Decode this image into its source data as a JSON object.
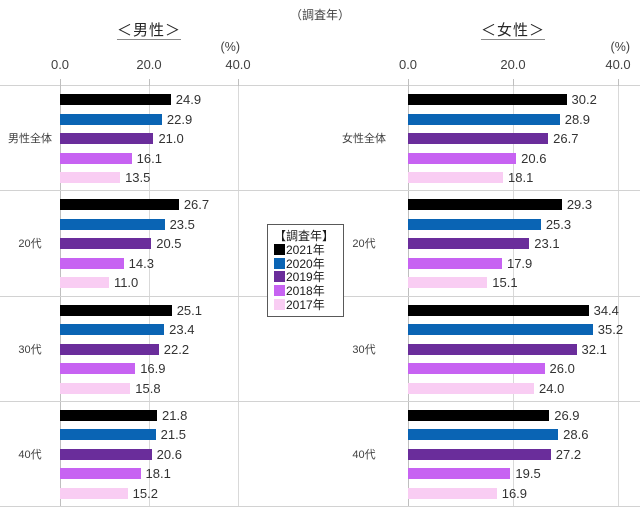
{
  "header": {
    "survey_year_note": "（調査年）"
  },
  "legend": {
    "title": "【調査年】",
    "items": [
      {
        "label": "2021年",
        "color": "#000000"
      },
      {
        "label": "2020年",
        "color": "#0a64b4"
      },
      {
        "label": "2019年",
        "color": "#6a2d9b"
      },
      {
        "label": "2018年",
        "color": "#c763f2"
      },
      {
        "label": "2017年",
        "color": "#f9cdf3"
      }
    ]
  },
  "chart_data": [
    {
      "type": "bar",
      "orientation": "horizontal",
      "title": "＜男性＞",
      "percent_label": "(%)",
      "axis_ticks": [
        "0.0",
        "20.0",
        "40.0"
      ],
      "xlim": [
        0,
        40
      ],
      "grid": true,
      "categories": [
        "男性全体",
        "20代",
        "30代",
        "40代"
      ],
      "series": [
        {
          "name": "2021年",
          "color": "#000000",
          "values": [
            24.9,
            26.7,
            25.1,
            21.8
          ]
        },
        {
          "name": "2020年",
          "color": "#0a64b4",
          "values": [
            22.9,
            23.5,
            23.4,
            21.5
          ]
        },
        {
          "name": "2019年",
          "color": "#6a2d9b",
          "values": [
            21.0,
            20.5,
            22.2,
            20.6
          ]
        },
        {
          "name": "2018年",
          "color": "#c763f2",
          "values": [
            16.1,
            14.3,
            16.9,
            18.1
          ]
        },
        {
          "name": "2017年",
          "color": "#f9cdf3",
          "values": [
            13.5,
            11.0,
            15.8,
            15.2
          ]
        }
      ]
    },
    {
      "type": "bar",
      "orientation": "horizontal",
      "title": "＜女性＞",
      "percent_label": "(%)",
      "axis_ticks": [
        "0.0",
        "20.0",
        "40.0"
      ],
      "xlim": [
        0,
        40
      ],
      "grid": true,
      "categories": [
        "女性全体",
        "20代",
        "30代",
        "40代"
      ],
      "series": [
        {
          "name": "2021年",
          "color": "#000000",
          "values": [
            30.2,
            29.3,
            34.4,
            26.9
          ]
        },
        {
          "name": "2020年",
          "color": "#0a64b4",
          "values": [
            28.9,
            25.3,
            35.2,
            28.6
          ]
        },
        {
          "name": "2019年",
          "color": "#6a2d9b",
          "values": [
            26.7,
            23.1,
            32.1,
            27.2
          ]
        },
        {
          "name": "2018年",
          "color": "#c763f2",
          "values": [
            20.6,
            17.9,
            26.0,
            19.5
          ]
        },
        {
          "name": "2017年",
          "color": "#f9cdf3",
          "values": [
            18.1,
            15.1,
            24.0,
            16.9
          ]
        }
      ]
    }
  ]
}
